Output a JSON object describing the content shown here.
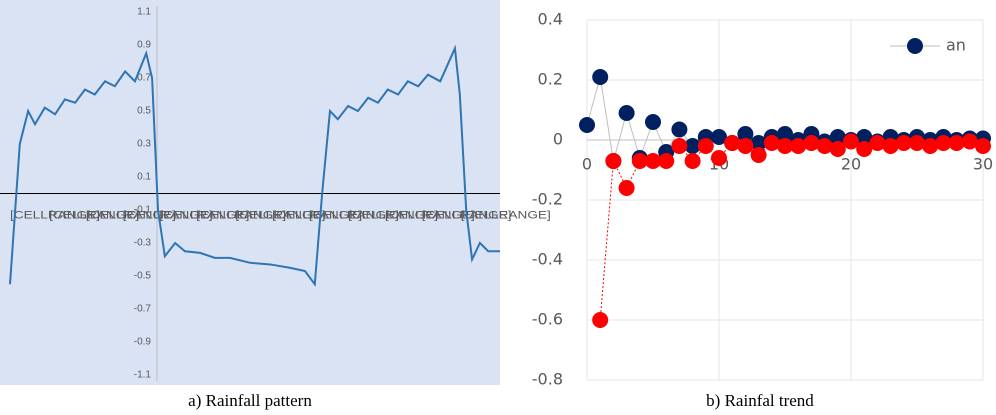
{
  "chart_data": [
    {
      "type": "line",
      "caption": "a) Rainfall pattern",
      "x": [
        0,
        2,
        3.7,
        5.1,
        7.1,
        9.2,
        11.2,
        13.3,
        15.3,
        17.3,
        19.4,
        21.4,
        23.5,
        25.5,
        27.8,
        29,
        30.2,
        31.6,
        33.7,
        35.7,
        38.8,
        41.8,
        44.9,
        49,
        53.1,
        57.1,
        60.2,
        62.2,
        63.7,
        65.3,
        66.9,
        69,
        71,
        73.1,
        75.1,
        77.1,
        79.2,
        81.2,
        83.3,
        85.3,
        87.8,
        90.8,
        91.8,
        93.1,
        94.3,
        95.9,
        97.6,
        100
      ],
      "series": [
        {
          "color": "#2e75b6",
          "values": [
            -0.55,
            0.3,
            0.5,
            0.42,
            0.52,
            0.48,
            0.57,
            0.55,
            0.63,
            0.6,
            0.68,
            0.65,
            0.74,
            0.68,
            0.85,
            0.7,
            -0.1,
            -0.38,
            -0.3,
            -0.35,
            -0.36,
            -0.39,
            -0.39,
            -0.42,
            -0.43,
            -0.45,
            -0.47,
            -0.55,
            0,
            0.5,
            0.45,
            0.53,
            0.5,
            0.58,
            0.55,
            0.63,
            0.6,
            0.68,
            0.65,
            0.72,
            0.68,
            0.88,
            0.6,
            -0.1,
            -0.4,
            -0.3,
            -0.35,
            -0.35
          ]
        }
      ],
      "xlim": [
        0,
        100
      ],
      "xticks": [
        {
          "value": 0,
          "label": "[CELLRANGE]"
        },
        {
          "value": 8,
          "label": "[CELLRANGE]"
        },
        {
          "value": 15.5,
          "label": "[CELLRANGE]"
        },
        {
          "value": 23,
          "label": "[CELLRANGE]"
        },
        {
          "value": 30.5,
          "label": "[CELLRANGE]"
        },
        {
          "value": 38,
          "label": "[CELLRANGE]"
        },
        {
          "value": 46,
          "label": "[CELLRANGE]"
        },
        {
          "value": 53.5,
          "label": "[CELLRANGE]"
        },
        {
          "value": 61,
          "label": "[CELLRANGE]"
        },
        {
          "value": 69,
          "label": "[CELLRANGE]"
        },
        {
          "value": 76.5,
          "label": "[CELLRANGE]"
        },
        {
          "value": 84,
          "label": "[CELLRANGE]"
        },
        {
          "value": 92,
          "label": "[CELLRANGE]"
        }
      ],
      "ylim": [
        -1.1,
        1.1
      ],
      "yticks": [
        -1.1,
        -0.9,
        -0.7,
        -0.5,
        -0.3,
        -0.1,
        0.1,
        0.3,
        0.5,
        0.7,
        0.9,
        1.1
      ]
    },
    {
      "type": "scatter",
      "caption": "b) Rainfal trend",
      "series": [
        {
          "name": "an",
          "color": "#002060",
          "line": "#bfbfbf",
          "x": [
            0,
            1,
            2,
            3,
            4,
            5,
            6,
            7,
            8,
            9,
            10,
            11,
            12,
            13,
            14,
            15,
            16,
            17,
            18,
            19,
            20,
            21,
            22,
            23,
            24,
            25,
            26,
            27,
            28,
            29,
            30
          ],
          "values": [
            0.05,
            0.21,
            -0.07,
            0.09,
            -0.06,
            0.06,
            -0.04,
            0.035,
            -0.02,
            0.01,
            0.01,
            -0.01,
            0.02,
            -0.01,
            0.01,
            0.02,
            0,
            0.02,
            -0.005,
            0.01,
            0,
            0.01,
            -0.005,
            0.01,
            0,
            0.01,
            0,
            0.01,
            0,
            0.005,
            0.005
          ]
        },
        {
          "color": "#ff0000",
          "line": "#ff0000",
          "x": [
            1,
            2,
            3,
            4,
            5,
            6,
            7,
            8,
            9,
            10,
            11,
            12,
            13,
            14,
            15,
            16,
            17,
            18,
            19,
            20,
            21,
            22,
            23,
            24,
            25,
            26,
            27,
            28,
            29,
            30
          ],
          "values": [
            -0.6,
            -0.07,
            -0.16,
            -0.07,
            -0.07,
            -0.07,
            -0.02,
            -0.07,
            -0.02,
            -0.06,
            -0.01,
            -0.02,
            -0.05,
            -0.01,
            -0.02,
            -0.02,
            -0.01,
            -0.02,
            -0.03,
            -0.005,
            -0.03,
            -0.01,
            -0.02,
            -0.01,
            -0.01,
            -0.02,
            -0.01,
            -0.01,
            -0.005,
            -0.02
          ]
        }
      ],
      "xlim": [
        0,
        30
      ],
      "xticks": [
        0,
        10,
        20,
        30
      ],
      "ylim": [
        -0.8,
        0.4
      ],
      "yticks": [
        -0.8,
        -0.6,
        -0.4,
        -0.2,
        0,
        0.2,
        0.4
      ],
      "grid": true,
      "legend": "top-right"
    }
  ]
}
